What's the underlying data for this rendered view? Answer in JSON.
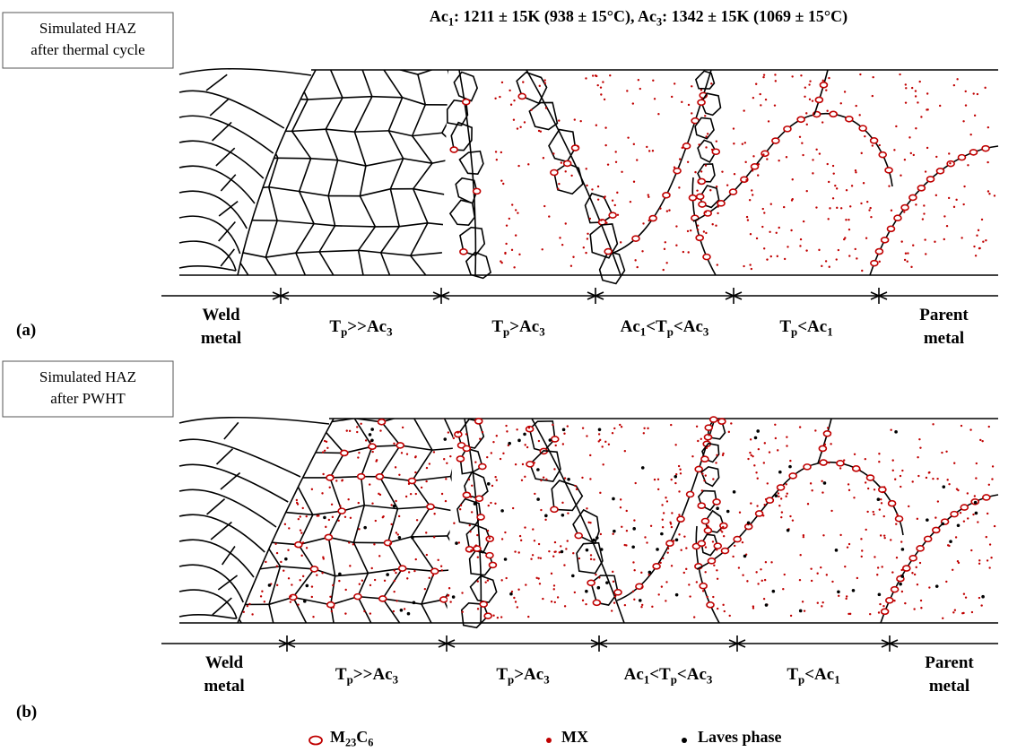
{
  "header": {
    "title": [
      [
        "Ac",
        "1",
        ": 1211 ± 15K (938 ± 15°C), Ac",
        "3",
        ": 1342 ± 15K (1069 ± 15°C)"
      ]
    ]
  },
  "panels": [
    {
      "box": [
        [
          "Simulated HAZ"
        ],
        [
          "after thermal cycle"
        ]
      ],
      "letter": [
        [
          "(a)"
        ]
      ],
      "zones": [
        [
          [
            "Weld"
          ],
          [
            "metal"
          ]
        ],
        [
          [
            "T",
            "p",
            ">>Ac",
            "3"
          ]
        ],
        [
          [
            "T",
            "p",
            ">Ac",
            "3"
          ]
        ],
        [
          [
            "Ac",
            "1",
            "<T",
            "p",
            "<Ac",
            "3"
          ]
        ],
        [
          [
            "T",
            "p",
            "<Ac",
            "1"
          ]
        ],
        [
          [
            "Parent"
          ],
          [
            "metal"
          ]
        ]
      ]
    },
    {
      "box": [
        [
          "Simulated HAZ"
        ],
        [
          "after PWHT"
        ]
      ],
      "letter": [
        [
          "(b)"
        ]
      ],
      "zones": [
        [
          [
            "Weld"
          ],
          [
            "metal"
          ]
        ],
        [
          [
            "T",
            "p",
            ">>Ac",
            "3"
          ]
        ],
        [
          [
            "T",
            "p",
            ">Ac",
            "3"
          ]
        ],
        [
          [
            "Ac",
            "1",
            "<T",
            "p",
            "<Ac",
            "3"
          ]
        ],
        [
          [
            "T",
            "p",
            "<Ac",
            "1"
          ]
        ],
        [
          [
            "Parent"
          ],
          [
            "metal"
          ]
        ]
      ]
    }
  ],
  "legend": [
    {
      "label": [
        [
          "M",
          "23",
          "C",
          "6"
        ]
      ]
    },
    {
      "label": [
        [
          "MX"
        ]
      ]
    },
    {
      "label": [
        [
          "Laves phase"
        ]
      ]
    }
  ]
}
